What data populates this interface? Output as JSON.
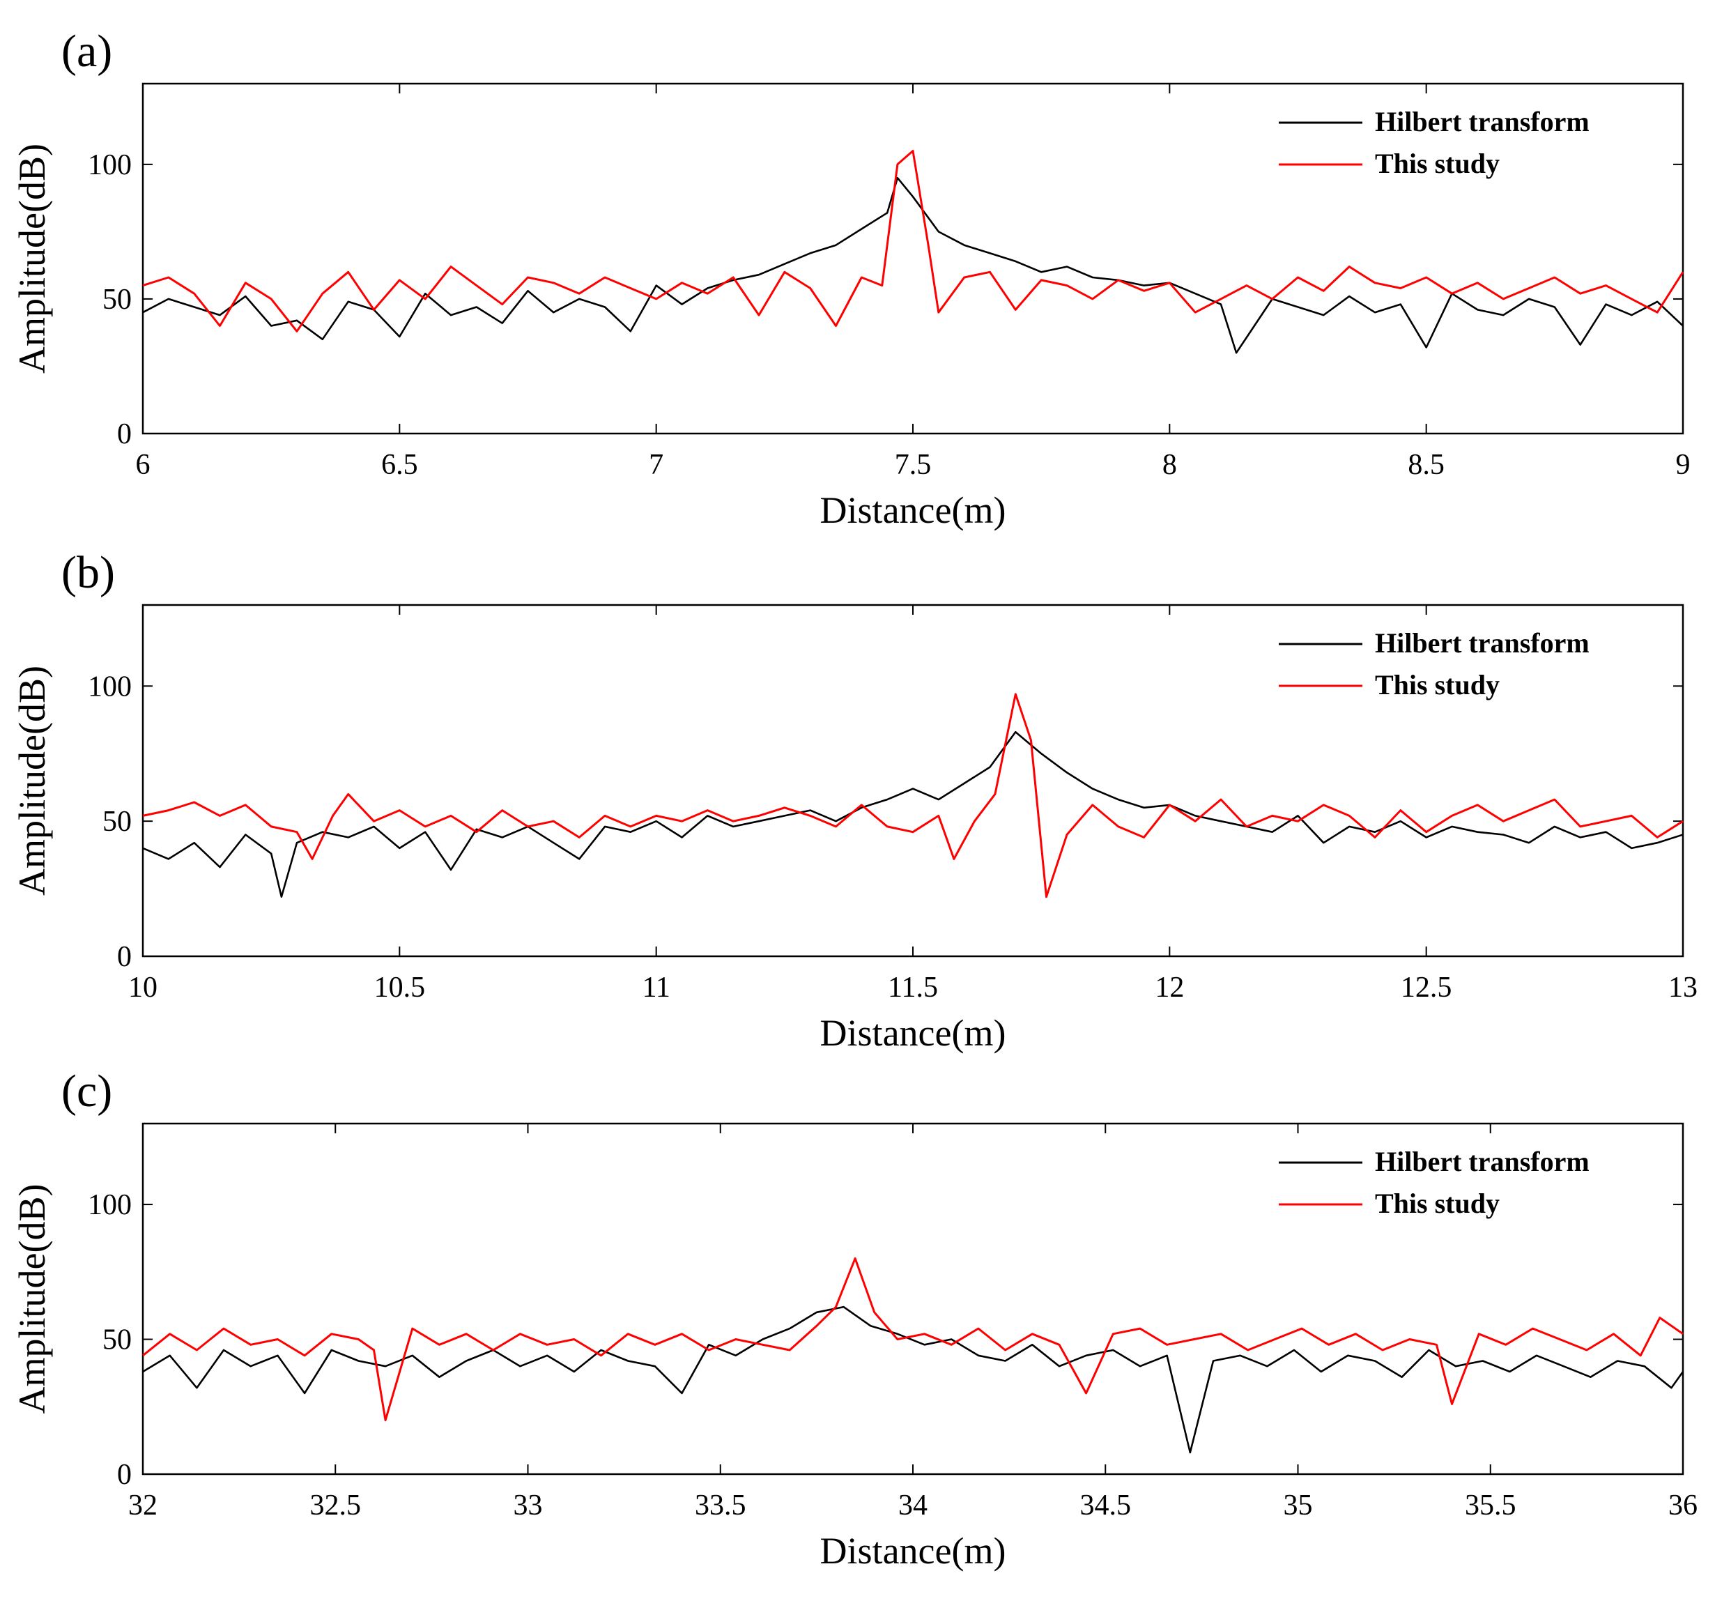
{
  "figure": {
    "legend_labels": [
      "Hilbert transform",
      "This study"
    ],
    "colors": {
      "hilbert": "#000000",
      "this_study": "#ff0000"
    }
  },
  "chart_data": [
    {
      "panel": "(a)",
      "type": "line",
      "xlabel": "Distance(m)",
      "ylabel": "Amplitude(dB)",
      "xlim": [
        6,
        9
      ],
      "ylim": [
        0,
        130
      ],
      "xticks": [
        6,
        6.5,
        7,
        7.5,
        8,
        8.5,
        9
      ],
      "xtick_labels": [
        "6",
        "6.5",
        "7",
        "7.5",
        "8",
        "8.5",
        "9"
      ],
      "yticks": [
        0,
        50,
        100
      ],
      "ytick_labels": [
        "0",
        "50",
        "100"
      ],
      "legend": "top-right",
      "series": [
        {
          "name": "Hilbert transform",
          "color": "#000000",
          "x": [
            6.0,
            6.05,
            6.1,
            6.15,
            6.2,
            6.25,
            6.3,
            6.35,
            6.4,
            6.45,
            6.5,
            6.55,
            6.6,
            6.65,
            6.7,
            6.75,
            6.8,
            6.85,
            6.9,
            6.95,
            7.0,
            7.05,
            7.1,
            7.15,
            7.2,
            7.25,
            7.3,
            7.35,
            7.4,
            7.45,
            7.47,
            7.5,
            7.55,
            7.6,
            7.65,
            7.7,
            7.75,
            7.8,
            7.85,
            7.9,
            7.95,
            8.0,
            8.05,
            8.1,
            8.13,
            8.2,
            8.25,
            8.3,
            8.35,
            8.4,
            8.45,
            8.5,
            8.55,
            8.6,
            8.65,
            8.7,
            8.75,
            8.8,
            8.85,
            8.9,
            8.95,
            9.0
          ],
          "y": [
            45,
            50,
            47,
            44,
            51,
            40,
            42,
            35,
            49,
            46,
            36,
            52,
            44,
            47,
            41,
            53,
            45,
            50,
            47,
            38,
            55,
            48,
            54,
            57,
            59,
            63,
            67,
            70,
            76,
            82,
            95,
            88,
            75,
            70,
            67,
            64,
            60,
            62,
            58,
            57,
            55,
            56,
            52,
            48,
            30,
            50,
            47,
            44,
            51,
            45,
            48,
            32,
            52,
            46,
            44,
            50,
            47,
            33,
            48,
            44,
            49,
            40
          ]
        },
        {
          "name": "This study",
          "color": "#ff0000",
          "x": [
            6.0,
            6.05,
            6.1,
            6.15,
            6.2,
            6.25,
            6.3,
            6.35,
            6.4,
            6.45,
            6.5,
            6.55,
            6.6,
            6.65,
            6.7,
            6.75,
            6.8,
            6.85,
            6.9,
            6.95,
            7.0,
            7.05,
            7.1,
            7.15,
            7.2,
            7.25,
            7.3,
            7.35,
            7.4,
            7.44,
            7.47,
            7.5,
            7.53,
            7.55,
            7.6,
            7.65,
            7.7,
            7.75,
            7.8,
            7.85,
            7.9,
            7.95,
            8.0,
            8.05,
            8.1,
            8.15,
            8.2,
            8.25,
            8.3,
            8.35,
            8.4,
            8.45,
            8.5,
            8.55,
            8.6,
            8.65,
            8.7,
            8.75,
            8.8,
            8.85,
            8.9,
            8.95,
            9.0
          ],
          "y": [
            55,
            58,
            52,
            40,
            56,
            50,
            38,
            52,
            60,
            46,
            57,
            50,
            62,
            55,
            48,
            58,
            56,
            52,
            58,
            54,
            50,
            56,
            52,
            58,
            44,
            60,
            54,
            40,
            58,
            55,
            100,
            105,
            70,
            45,
            58,
            60,
            46,
            57,
            55,
            50,
            57,
            53,
            56,
            45,
            50,
            55,
            50,
            58,
            53,
            62,
            56,
            54,
            58,
            52,
            56,
            50,
            54,
            58,
            52,
            55,
            50,
            45,
            60
          ]
        }
      ]
    },
    {
      "panel": "(b)",
      "type": "line",
      "xlabel": "Distance(m)",
      "ylabel": "Amplitude(dB)",
      "xlim": [
        10,
        13
      ],
      "ylim": [
        0,
        130
      ],
      "xticks": [
        10,
        10.5,
        11,
        11.5,
        12,
        12.5,
        13
      ],
      "xtick_labels": [
        "10",
        "10.5",
        "11",
        "11.5",
        "12",
        "12.5",
        "13"
      ],
      "yticks": [
        0,
        50,
        100
      ],
      "ytick_labels": [
        "0",
        "50",
        "100"
      ],
      "legend": "top-right",
      "series": [
        {
          "name": "Hilbert transform",
          "color": "#000000",
          "x": [
            10.0,
            10.05,
            10.1,
            10.15,
            10.2,
            10.25,
            10.27,
            10.3,
            10.35,
            10.4,
            10.45,
            10.5,
            10.55,
            10.6,
            10.65,
            10.7,
            10.75,
            10.8,
            10.85,
            10.9,
            10.95,
            11.0,
            11.05,
            11.1,
            11.15,
            11.2,
            11.25,
            11.3,
            11.35,
            11.4,
            11.45,
            11.5,
            11.55,
            11.6,
            11.65,
            11.7,
            11.75,
            11.8,
            11.85,
            11.9,
            11.95,
            12.0,
            12.05,
            12.1,
            12.15,
            12.2,
            12.25,
            12.3,
            12.35,
            12.4,
            12.45,
            12.5,
            12.55,
            12.6,
            12.65,
            12.7,
            12.75,
            12.8,
            12.85,
            12.9,
            12.95,
            13.0
          ],
          "y": [
            40,
            36,
            42,
            33,
            45,
            38,
            22,
            42,
            46,
            44,
            48,
            40,
            46,
            32,
            47,
            44,
            48,
            42,
            36,
            48,
            46,
            50,
            44,
            52,
            48,
            50,
            52,
            54,
            50,
            55,
            58,
            62,
            58,
            64,
            70,
            83,
            75,
            68,
            62,
            58,
            55,
            56,
            52,
            50,
            48,
            46,
            52,
            42,
            48,
            46,
            50,
            44,
            48,
            46,
            45,
            42,
            48,
            44,
            46,
            40,
            42,
            45
          ]
        },
        {
          "name": "This study",
          "color": "#ff0000",
          "x": [
            10.0,
            10.05,
            10.1,
            10.15,
            10.2,
            10.25,
            10.3,
            10.33,
            10.37,
            10.4,
            10.45,
            10.5,
            10.55,
            10.6,
            10.65,
            10.7,
            10.75,
            10.8,
            10.85,
            10.9,
            10.95,
            11.0,
            11.05,
            11.1,
            11.15,
            11.2,
            11.25,
            11.3,
            11.35,
            11.4,
            11.45,
            11.5,
            11.55,
            11.58,
            11.62,
            11.66,
            11.7,
            11.73,
            11.76,
            11.8,
            11.85,
            11.9,
            11.95,
            12.0,
            12.05,
            12.1,
            12.15,
            12.2,
            12.25,
            12.3,
            12.35,
            12.4,
            12.45,
            12.5,
            12.55,
            12.6,
            12.65,
            12.7,
            12.75,
            12.8,
            12.85,
            12.9,
            12.95,
            13.0
          ],
          "y": [
            52,
            54,
            57,
            52,
            56,
            48,
            46,
            36,
            52,
            60,
            50,
            54,
            48,
            52,
            46,
            54,
            48,
            50,
            44,
            52,
            48,
            52,
            50,
            54,
            50,
            52,
            55,
            52,
            48,
            56,
            48,
            46,
            52,
            36,
            50,
            60,
            97,
            80,
            22,
            45,
            56,
            48,
            44,
            56,
            50,
            58,
            48,
            52,
            50,
            56,
            52,
            44,
            54,
            46,
            52,
            56,
            50,
            54,
            58,
            48,
            50,
            52,
            44,
            50
          ]
        }
      ]
    },
    {
      "panel": "(c)",
      "type": "line",
      "xlabel": "Distance(m)",
      "ylabel": "Amplitude(dB)",
      "xlim": [
        32,
        36
      ],
      "ylim": [
        0,
        130
      ],
      "xticks": [
        32,
        32.5,
        33,
        33.5,
        34,
        34.5,
        35,
        35.5,
        36
      ],
      "xtick_labels": [
        "32",
        "32.5",
        "33",
        "33.5",
        "34",
        "34.5",
        "35",
        "35.5",
        "36"
      ],
      "yticks": [
        0,
        50,
        100
      ],
      "ytick_labels": [
        "0",
        "50",
        "100"
      ],
      "legend": "top-right",
      "series": [
        {
          "name": "Hilbert transform",
          "color": "#000000",
          "x": [
            32.0,
            32.07,
            32.14,
            32.21,
            32.28,
            32.35,
            32.42,
            32.49,
            32.56,
            32.63,
            32.7,
            32.77,
            32.84,
            32.91,
            32.98,
            33.05,
            33.12,
            33.19,
            33.26,
            33.33,
            33.4,
            33.47,
            33.54,
            33.61,
            33.68,
            33.75,
            33.82,
            33.89,
            33.96,
            34.03,
            34.1,
            34.17,
            34.24,
            34.31,
            34.38,
            34.45,
            34.52,
            34.59,
            34.66,
            34.72,
            34.78,
            34.85,
            34.92,
            34.99,
            35.06,
            35.13,
            35.2,
            35.27,
            35.34,
            35.41,
            35.48,
            35.55,
            35.62,
            35.69,
            35.76,
            35.83,
            35.9,
            35.97,
            36.0
          ],
          "y": [
            38,
            44,
            32,
            46,
            40,
            44,
            30,
            46,
            42,
            40,
            44,
            36,
            42,
            46,
            40,
            44,
            38,
            46,
            42,
            40,
            30,
            48,
            44,
            50,
            54,
            60,
            62,
            55,
            52,
            48,
            50,
            44,
            42,
            48,
            40,
            44,
            46,
            40,
            44,
            8,
            42,
            44,
            40,
            46,
            38,
            44,
            42,
            36,
            46,
            40,
            42,
            38,
            44,
            40,
            36,
            42,
            40,
            32,
            38
          ]
        },
        {
          "name": "This study",
          "color": "#ff0000",
          "x": [
            32.0,
            32.07,
            32.14,
            32.21,
            32.28,
            32.35,
            32.42,
            32.49,
            32.56,
            32.6,
            32.63,
            32.7,
            32.77,
            32.84,
            32.91,
            32.98,
            33.05,
            33.12,
            33.19,
            33.26,
            33.33,
            33.4,
            33.47,
            33.54,
            33.61,
            33.68,
            33.75,
            33.8,
            33.85,
            33.9,
            33.96,
            34.03,
            34.1,
            34.17,
            34.24,
            34.31,
            34.38,
            34.45,
            34.52,
            34.59,
            34.66,
            34.73,
            34.8,
            34.87,
            34.94,
            35.01,
            35.08,
            35.15,
            35.22,
            35.29,
            35.36,
            35.4,
            35.47,
            35.54,
            35.61,
            35.68,
            35.75,
            35.82,
            35.89,
            35.94,
            36.0
          ],
          "y": [
            44,
            52,
            46,
            54,
            48,
            50,
            44,
            52,
            50,
            46,
            20,
            54,
            48,
            52,
            46,
            52,
            48,
            50,
            44,
            52,
            48,
            52,
            46,
            50,
            48,
            46,
            55,
            62,
            80,
            60,
            50,
            52,
            48,
            54,
            46,
            52,
            48,
            30,
            52,
            54,
            48,
            50,
            52,
            46,
            50,
            54,
            48,
            52,
            46,
            50,
            48,
            26,
            52,
            48,
            54,
            50,
            46,
            52,
            44,
            58,
            52
          ]
        }
      ]
    }
  ]
}
